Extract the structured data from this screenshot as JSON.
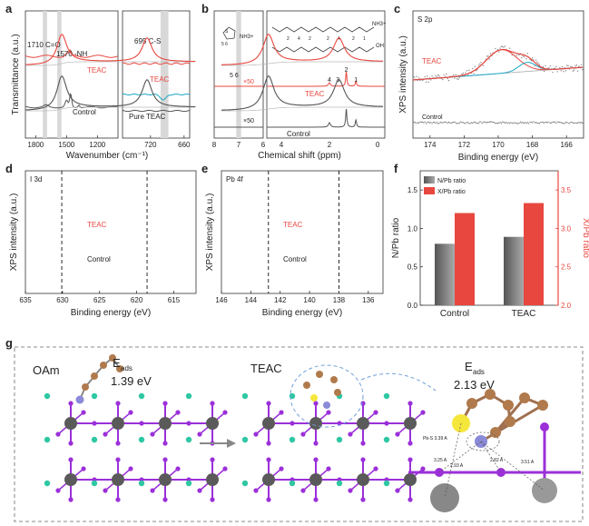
{
  "figure": {
    "panel_letters": [
      "a",
      "b",
      "c",
      "d",
      "e",
      "f",
      "g"
    ]
  },
  "chart_data": [
    {
      "panel": "a",
      "type": "line",
      "title": "",
      "xlabel": "Wavenumber (cm⁻¹)",
      "ylabel": "Transmittance (a.u.)",
      "xlim_left": [
        1900,
        1000
      ],
      "xlim_right": [
        770,
        650
      ],
      "x_ticks_left": [
        "1800",
        "1500",
        "1200"
      ],
      "x_ticks_right": [
        "720",
        "660"
      ],
      "annotations": [
        "1710 C=O",
        "1570 -NH",
        "695 C-S"
      ],
      "series": [
        {
          "name": "TEAC",
          "color": "#e8473f"
        },
        {
          "name": "Control",
          "color": "#555555"
        },
        {
          "name": "Pure TEAC",
          "color": "#1aa7c4"
        }
      ]
    },
    {
      "panel": "b",
      "type": "line",
      "xlabel": "Chemical shift (ppm)",
      "x_ticks_left": [
        "8",
        "7",
        "6"
      ],
      "x_ticks_right": [
        "4",
        "2",
        "0"
      ],
      "annotations": [
        "5 6",
        "×50",
        "×50",
        "4",
        "3",
        "2",
        "1"
      ],
      "structure_numbers": [
        "5",
        "6",
        "2",
        "4",
        "2",
        "2",
        "4",
        "2",
        "1",
        "3",
        "2",
        "1"
      ],
      "nh3_label": "NH3+",
      "oh_label": "OH",
      "series": [
        {
          "name": "TEAC",
          "color": "#e8473f"
        },
        {
          "name": "Control",
          "color": "#555555"
        }
      ],
      "peaks_ppm": [
        5.35,
        2.0,
        1.3,
        0.9
      ]
    },
    {
      "panel": "c",
      "type": "scatter",
      "title": "S 2p",
      "xlabel": "Binding energy (eV)",
      "ylabel": "XPS intensity (a.u.)",
      "xlim": [
        175,
        165
      ],
      "x_ticks": [
        "174",
        "172",
        "170",
        "168",
        "166"
      ],
      "series": [
        {
          "name": "TEAC",
          "color": "#e8473f"
        },
        {
          "name": "Control",
          "color": "#555555"
        }
      ],
      "peaks_eV": [
        169.8,
        168.3
      ]
    },
    {
      "panel": "d",
      "type": "line",
      "title": "I 3d",
      "xlabel": "Binding energy (eV)",
      "ylabel": "XPS intensity (a.u.)",
      "xlim": [
        635,
        612
      ],
      "x_ticks": [
        "635",
        "630",
        "625",
        "620",
        "615"
      ],
      "series": [
        {
          "name": "TEAC",
          "color": "#e8473f"
        },
        {
          "name": "Control",
          "color": "#555555"
        }
      ],
      "peaks_eV": [
        630.1,
        618.6
      ]
    },
    {
      "panel": "e",
      "type": "line",
      "title": "Pb 4f",
      "xlabel": "Binding energy (eV)",
      "ylabel": "XPS intensity (a.u.)",
      "xlim": [
        146,
        135
      ],
      "x_ticks": [
        "146",
        "144",
        "142",
        "140",
        "138",
        "136"
      ],
      "series": [
        {
          "name": "TEAC",
          "color": "#e8473f"
        },
        {
          "name": "Control",
          "color": "#555555"
        }
      ],
      "peaks_eV": [
        142.8,
        138.0
      ]
    },
    {
      "panel": "f",
      "type": "bar",
      "categories": [
        "Control",
        "TEAC"
      ],
      "ylabel": "N/Pb ratio",
      "ylabel_right": "X/Pb ratio",
      "ylim_left": [
        0.0,
        1.75
      ],
      "ylim_right": [
        2.0,
        3.75
      ],
      "y_ticks_left": [
        "0.0",
        "0.5",
        "1.0",
        "1.5"
      ],
      "y_ticks_right": [
        "2.0",
        "2.5",
        "3.0",
        "3.5"
      ],
      "series": [
        {
          "name": "N/Pb ratio",
          "axis": "left",
          "values": [
            0.8,
            0.89
          ],
          "color": "#777777"
        },
        {
          "name": "X/Pb ratio",
          "axis": "right",
          "values": [
            3.2,
            3.33
          ],
          "color": "#e8473f"
        }
      ]
    }
  ],
  "panel_g": {
    "left_label": "OAm",
    "left_eads_label": "E",
    "left_eads_sub": "ads",
    "left_eads_value": "1.39 eV",
    "mid_label": "TEAC",
    "right_eads_label": "E",
    "right_eads_sub": "ads",
    "right_eads_value": "2.13 eV",
    "bond_labels": [
      "Pb-S 3.39 A",
      "3.25 A",
      "2.93 A",
      "2.82 A",
      "3.51 A"
    ],
    "atom_colors": {
      "pb": "#5a5a5a",
      "i": "#9b30d9",
      "cs": "#2ec7a3",
      "s": "#f5e63c",
      "c": "#b07a4c",
      "n": "#8a8ad8",
      "h": "#f0d0d0"
    }
  }
}
